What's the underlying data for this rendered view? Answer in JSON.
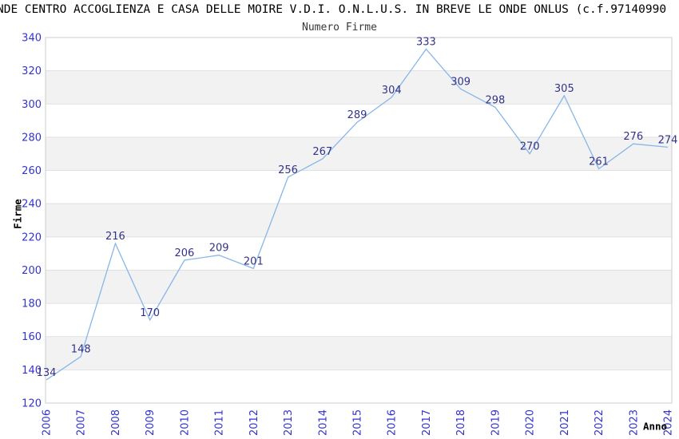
{
  "header": {
    "title": "NDE CENTRO ACCOGLIENZA E CASA DELLE MOIRE V.D.I. O.N.L.U.S. IN BREVE LE ONDE ONLUS (c.f.97140990",
    "subtitle": "Numero Firme"
  },
  "chart_data": {
    "type": "line",
    "title": "Numero Firme",
    "xlabel": "Anno",
    "ylabel": "Firme",
    "categories": [
      "2006",
      "2007",
      "2008",
      "2009",
      "2010",
      "2011",
      "2012",
      "2013",
      "2014",
      "2015",
      "2016",
      "2017",
      "2018",
      "2019",
      "2020",
      "2021",
      "2022",
      "2023",
      "2024"
    ],
    "values": [
      134,
      148,
      216,
      170,
      206,
      209,
      201,
      256,
      267,
      289,
      304,
      333,
      309,
      298,
      270,
      305,
      261,
      276,
      274
    ],
    "ylim": [
      120,
      340
    ],
    "ytick_step": 20,
    "grid": "horizontal alternating bands every 20 units",
    "legend": "none",
    "colors": {
      "line": "#88b6e8",
      "tick_label": "#3333cc",
      "data_label": "#333388",
      "band_fill": "#f2f2f2",
      "band_line": "#e0e0e0",
      "plot_border": "#cccccc",
      "title_text": "#000000"
    }
  }
}
